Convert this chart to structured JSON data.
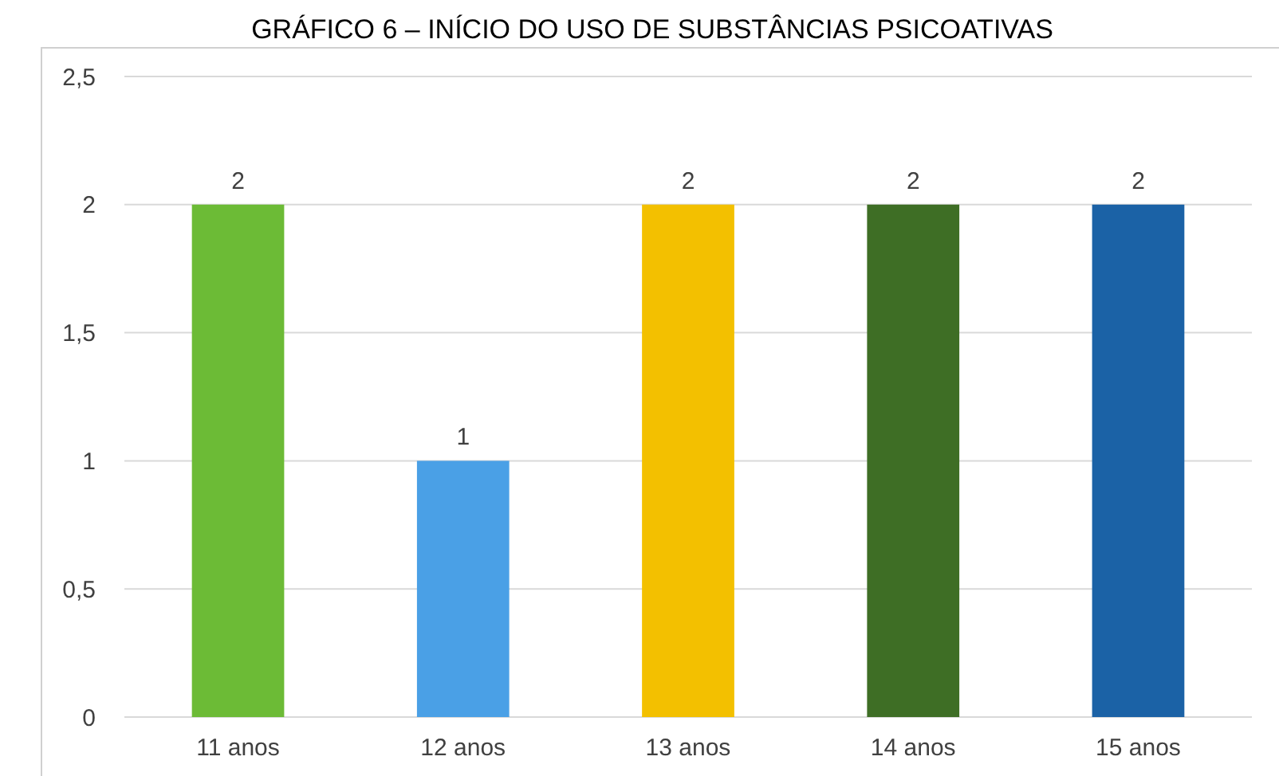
{
  "chart_data": {
    "type": "bar",
    "title": "GRÁFICO 6 – INÍCIO DO USO DE SUBSTÂNCIAS PSICOATIVAS",
    "categories": [
      "11 anos",
      "12 anos",
      "13 anos",
      "14 anos",
      "15 anos"
    ],
    "values": [
      2,
      1,
      2,
      2,
      2
    ],
    "colors": [
      "#6cbb36",
      "#4aa0e6",
      "#f3c000",
      "#3e6e25",
      "#1b62a6"
    ],
    "ylim": [
      0,
      2.5
    ],
    "yticks": [
      0,
      {
        "value": 0.5,
        "label": "0,5"
      },
      1,
      {
        "value": 1.5,
        "label": "1,5"
      },
      2,
      {
        "value": 2.5,
        "label": "2,5"
      }
    ],
    "grid": "y",
    "data_labels": true
  }
}
